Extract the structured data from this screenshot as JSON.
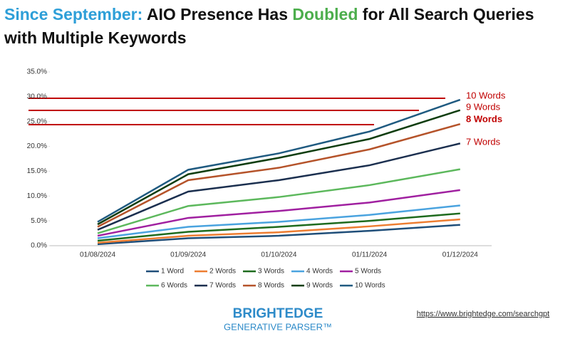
{
  "chart_data": {
    "type": "line",
    "title_segments": [
      {
        "text": "Since September:",
        "color": "#2e9fd8"
      },
      {
        "text": " AIO Presence Has ",
        "color": "#111111"
      },
      {
        "text": "Doubled",
        "color": "#4cae4c"
      },
      {
        "text": " for All Search Queries with Multiple Keywords",
        "color": "#111111"
      }
    ],
    "categories": [
      "01/08/2024",
      "01/09/2024",
      "01/10/2024",
      "01/11/2024",
      "01/12/2024"
    ],
    "ylim": [
      0,
      35
    ],
    "yticks": [
      {
        "value": 0,
        "label": "0.0%"
      },
      {
        "value": 5,
        "label": "5.0%"
      },
      {
        "value": 10,
        "label": "10.0%"
      },
      {
        "value": 15,
        "label": "15.0%"
      },
      {
        "value": 20,
        "label": "20.0%"
      },
      {
        "value": 25,
        "label": "25.0%"
      },
      {
        "value": 30,
        "label": "30.0%"
      },
      {
        "value": 35,
        "label": "35.0%"
      }
    ],
    "grid": false,
    "series": [
      {
        "name": "1 Word",
        "color": "#1f4e79",
        "values": [
          0.3,
          1.5,
          2.0,
          3.0,
          4.2
        ]
      },
      {
        "name": "2 Words",
        "color": "#ed7d31",
        "values": [
          0.6,
          2.0,
          2.7,
          3.9,
          5.3
        ]
      },
      {
        "name": "3 Words",
        "color": "#1e6b1e",
        "values": [
          1.0,
          2.8,
          3.8,
          5.0,
          6.5
        ]
      },
      {
        "name": "4 Words",
        "color": "#4aa3df",
        "values": [
          1.5,
          3.8,
          4.8,
          6.2,
          8.1
        ]
      },
      {
        "name": "5 Words",
        "color": "#a020a0",
        "values": [
          2.0,
          5.6,
          7.0,
          8.7,
          11.2
        ]
      },
      {
        "name": "6 Words",
        "color": "#5cb85c",
        "values": [
          2.5,
          8.0,
          9.8,
          12.2,
          15.4
        ]
      },
      {
        "name": "7 Words",
        "color": "#1b2f4f",
        "values": [
          3.2,
          10.9,
          13.2,
          16.2,
          20.6
        ]
      },
      {
        "name": "8 Words",
        "color": "#b5532a",
        "values": [
          3.8,
          13.2,
          15.7,
          19.4,
          24.5
        ]
      },
      {
        "name": "9 Words",
        "color": "#0f3d0f",
        "values": [
          4.3,
          14.4,
          17.7,
          21.5,
          27.3
        ]
      },
      {
        "name": "10 Words",
        "color": "#1f5a80",
        "values": [
          4.8,
          15.3,
          18.6,
          23.0,
          29.4
        ]
      }
    ],
    "annotations": [
      "10 Words",
      "9 Words",
      "8 Words",
      "7 Words"
    ],
    "footer": {
      "brand": "BRIGHTEDGE",
      "product": "GENERATIVE PARSER™",
      "url": "https://www.brightedge.com/searchgpt"
    }
  }
}
